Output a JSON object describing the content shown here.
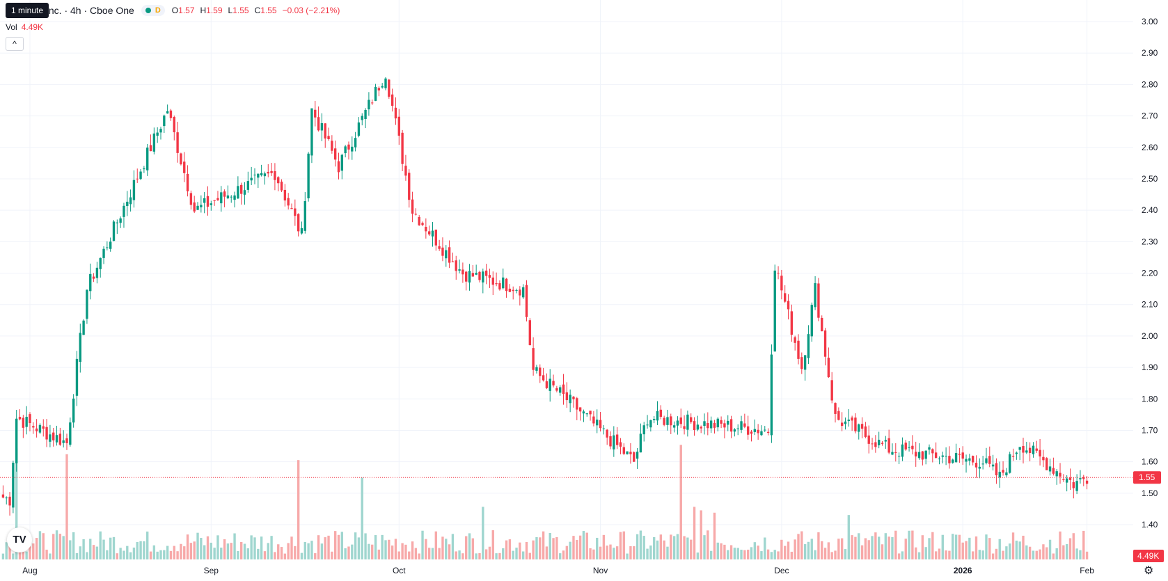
{
  "header": {
    "tooltip": "1 minute",
    "symbol": "Inc. · 4h · Cboe One",
    "badge": "D",
    "ohlc": [
      {
        "key": "O",
        "value": "1.57"
      },
      {
        "key": "H",
        "value": "1.59"
      },
      {
        "key": "L",
        "value": "1.55"
      },
      {
        "key": "C",
        "value": "1.55"
      }
    ],
    "change": "−0.03 (−2.21%)",
    "vol_label": "Vol",
    "vol_value": "4.49K",
    "collapse_icon": "chevron-up-icon",
    "collapse_glyph": "^"
  },
  "logo_text": "TV",
  "settings_icon": "gear-icon",
  "colors": {
    "up": "#089981",
    "down": "#f23645",
    "up_vol": "#9fd6cf",
    "down_vol": "#f7a9a9",
    "grid": "#f0f3fa",
    "text": "#131722"
  },
  "chart_data": {
    "type": "candlestick",
    "y_axis": {
      "ticks": [
        "3.00",
        "2.90",
        "2.80",
        "2.70",
        "2.60",
        "2.50",
        "2.40",
        "2.30",
        "2.20",
        "2.10",
        "2.00",
        "1.90",
        "1.80",
        "1.70",
        "1.60",
        "1.50",
        "1.40"
      ],
      "range": [
        1.31,
        3.03
      ],
      "position": "right"
    },
    "x_axis": {
      "labels": [
        {
          "text": "Aug",
          "bold": false
        },
        {
          "text": "Sep",
          "bold": false
        },
        {
          "text": "Oct",
          "bold": false
        },
        {
          "text": "Nov",
          "bold": false
        },
        {
          "text": "Dec",
          "bold": false
        },
        {
          "text": "2026",
          "bold": true
        },
        {
          "text": "Feb",
          "bold": false
        }
      ]
    },
    "last_price": "1.55",
    "last_volume": "4.49K",
    "price_segments": [
      {
        "from": 1.49,
        "to": 1.48,
        "n": 3,
        "note": "pre-Aug"
      },
      {
        "from": 1.48,
        "to": 1.74,
        "n": 2
      },
      {
        "from": 1.74,
        "to": 1.66,
        "n": 15
      },
      {
        "from": 1.66,
        "to": 2.15,
        "n": 6
      },
      {
        "from": 2.15,
        "to": 2.72,
        "n": 24
      },
      {
        "from": 2.72,
        "to": 2.4,
        "n": 8
      },
      {
        "from": 2.4,
        "to": 2.52,
        "n": 24
      },
      {
        "from": 2.52,
        "to": 2.32,
        "n": 8
      },
      {
        "from": 2.32,
        "to": 2.72,
        "n": 3
      },
      {
        "from": 2.72,
        "to": 2.54,
        "n": 8
      },
      {
        "from": 2.54,
        "to": 2.84,
        "n": 14
      },
      {
        "from": 2.84,
        "to": 2.4,
        "n": 8
      },
      {
        "from": 2.4,
        "to": 2.2,
        "n": 15
      },
      {
        "from": 2.2,
        "to": 2.15,
        "n": 18
      },
      {
        "from": 2.15,
        "to": 1.89,
        "n": 3
      },
      {
        "from": 1.89,
        "to": 1.78,
        "n": 12
      },
      {
        "from": 1.78,
        "to": 1.6,
        "n": 18
      },
      {
        "from": 1.6,
        "to": 1.74,
        "n": 4
      },
      {
        "from": 1.74,
        "to": 1.7,
        "n": 36
      },
      {
        "from": 1.7,
        "to": 2.23,
        "n": 2
      },
      {
        "from": 2.23,
        "to": 1.9,
        "n": 8
      },
      {
        "from": 1.9,
        "to": 2.15,
        "n": 4
      },
      {
        "from": 2.15,
        "to": 1.74,
        "n": 6
      },
      {
        "from": 1.74,
        "to": 1.64,
        "n": 16
      },
      {
        "from": 1.64,
        "to": 1.6,
        "n": 28
      },
      {
        "from": 1.6,
        "to": 1.55,
        "n": 5
      },
      {
        "from": 1.55,
        "to": 1.66,
        "n": 6
      },
      {
        "from": 1.66,
        "to": 1.53,
        "n": 16
      },
      {
        "from": 1.53,
        "to": 1.55,
        "n": 4
      }
    ],
    "volume_spikes": [
      {
        "index": 4,
        "level": 0.95
      },
      {
        "index": 19,
        "level": 0.9
      },
      {
        "index": 88,
        "level": 0.85
      },
      {
        "index": 107,
        "level": 0.7
      },
      {
        "index": 143,
        "level": 0.45
      },
      {
        "index": 202,
        "level": 0.98
      },
      {
        "index": 206,
        "level": 0.45
      },
      {
        "index": 208,
        "level": 0.42
      },
      {
        "index": 212,
        "level": 0.4
      },
      {
        "index": 252,
        "level": 0.38
      }
    ],
    "volume_scale_max": "~150K"
  }
}
